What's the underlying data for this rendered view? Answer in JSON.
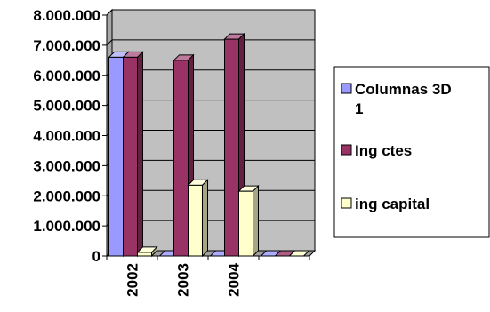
{
  "chart_data": {
    "type": "bar",
    "categories": [
      "2002",
      "2003",
      "2004",
      ""
    ],
    "series": [
      {
        "name": "Columnas 3D 1",
        "values": [
          6600000,
          0,
          0,
          0
        ],
        "color": "#9999FF"
      },
      {
        "name": "Ing ctes",
        "values": [
          6600000,
          6500000,
          7200000,
          0
        ],
        "color": "#993366"
      },
      {
        "name": "ing capital",
        "values": [
          120000,
          2350000,
          2150000,
          0
        ],
        "color": "#FFFFCC"
      }
    ],
    "ylim": [
      0,
      8000000
    ],
    "yticks": [
      "0",
      "1.000.000",
      "2.000.000",
      "3.000.000",
      "4.000.000",
      "5.000.000",
      "6.000.000",
      "7.000.000",
      "8.000.000"
    ],
    "grid": true,
    "wall_color": "#C0C0C0",
    "legend_position": "right"
  }
}
